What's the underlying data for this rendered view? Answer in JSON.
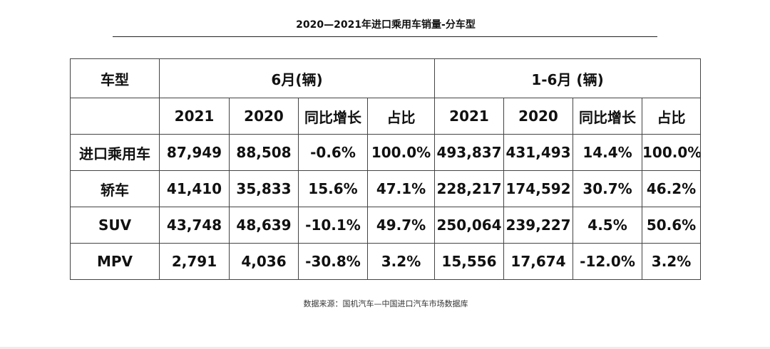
{
  "title": "2020—2021年进口乘用车销量-分车型",
  "table": {
    "model_header": "车型",
    "group_june": "6月(辆)",
    "group_h1": "1-6月 (辆)",
    "sub_headers": [
      "2021",
      "2020",
      "同比增长",
      "占比",
      "2021",
      "2020",
      "同比增长",
      "占比"
    ],
    "rows": [
      {
        "model": "进口乘用车",
        "cells": [
          "87,949",
          "88,508",
          "-0.6%",
          "100.0%",
          "493,837",
          "431,493",
          "14.4%",
          "100.0%"
        ]
      },
      {
        "model": "轿车",
        "cells": [
          "41,410",
          "35,833",
          "15.6%",
          "47.1%",
          "228,217",
          "174,592",
          "30.7%",
          "46.2%"
        ]
      },
      {
        "model": "SUV",
        "cells": [
          "43,748",
          "48,639",
          "-10.1%",
          "49.7%",
          "250,064",
          "239,227",
          "4.5%",
          "50.6%"
        ]
      },
      {
        "model": "MPV",
        "cells": [
          "2,791",
          "4,036",
          "-30.8%",
          "3.2%",
          "15,556",
          "17,674",
          "-12.0%",
          "3.2%"
        ]
      }
    ]
  },
  "source_note": "数据来源：国机汽车—中国进口汽车市场数据库"
}
